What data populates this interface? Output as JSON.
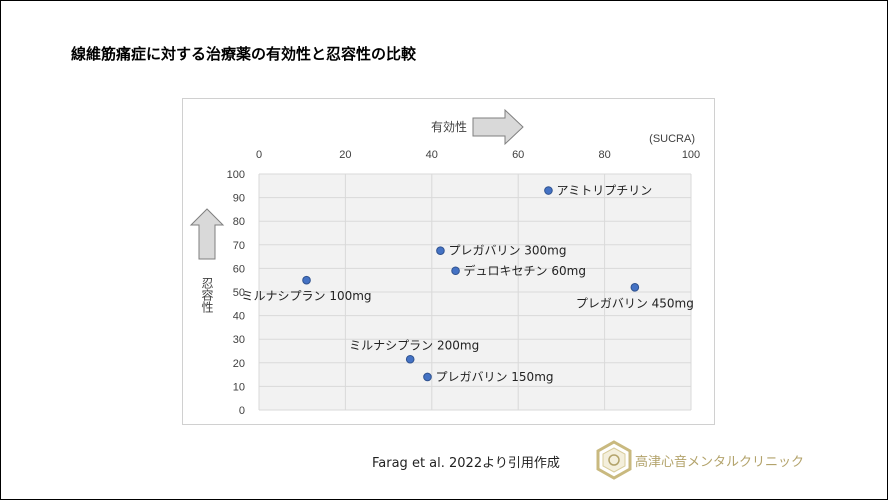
{
  "title": "線維筋痛症に対する治療薬の有効性と忍容性の比較",
  "source": "Farag et al. 2022より引用作成",
  "clinic_name": "高津心音メンタルクリニック",
  "colors": {
    "point": "#4472c4",
    "point_stroke": "#2f528f",
    "plot_bg": "#f2f2f2",
    "grid": "#d9d9d9",
    "arrow_fill": "#d9d9d9",
    "arrow_stroke": "#7f7f7f",
    "logo": "#b3a36b"
  },
  "chart_data": {
    "type": "scatter",
    "x_axis_label": "有効性",
    "x_unit": "(SUCRA)",
    "y_axis_label": "忍容性",
    "xlim": [
      0,
      100
    ],
    "ylim": [
      0,
      100
    ],
    "x_ticks": [
      0,
      20,
      40,
      60,
      80,
      100
    ],
    "y_ticks": [
      0,
      10,
      20,
      30,
      40,
      50,
      60,
      70,
      80,
      90,
      100
    ],
    "x_axis_position": "top",
    "grid": true,
    "points": [
      {
        "label": "アミトリプチリン",
        "x": 67,
        "y": 93,
        "label_pos": "right"
      },
      {
        "label": "プレガバリン 300mg",
        "x": 42,
        "y": 67.5,
        "label_pos": "right"
      },
      {
        "label": "デュロキセチン 60mg",
        "x": 45.5,
        "y": 59,
        "label_pos": "right"
      },
      {
        "label": "ミルナシプラン 100mg",
        "x": 11,
        "y": 55,
        "label_pos": "below"
      },
      {
        "label": "プレガバリン 450mg",
        "x": 87,
        "y": 52,
        "label_pos": "below"
      },
      {
        "label": "ミルナシプラン 200mg",
        "x": 35,
        "y": 21.5,
        "label_pos": "above"
      },
      {
        "label": "プレガバリン 150mg",
        "x": 39,
        "y": 14,
        "label_pos": "right"
      }
    ]
  }
}
